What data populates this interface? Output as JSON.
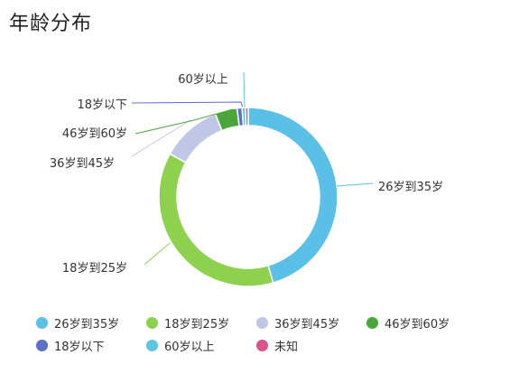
{
  "page": {
    "title": "年龄分布"
  },
  "chart_data": {
    "type": "pie",
    "variant": "donut",
    "title": "年龄分布",
    "legend_position": "bottom",
    "slices": [
      {
        "label": "26岁到35岁",
        "value": 45.5,
        "color": "#5bc0e8"
      },
      {
        "label": "18岁到25岁",
        "value": 37.5,
        "color": "#8ed14f"
      },
      {
        "label": "36岁到45岁",
        "value": 11.0,
        "color": "#bfc6e6"
      },
      {
        "label": "46岁到60岁",
        "value": 4.0,
        "color": "#4aa63a"
      },
      {
        "label": "18岁以下",
        "value": 0.9,
        "color": "#5b6fc7"
      },
      {
        "label": "60岁以上",
        "value": 0.6,
        "color": "#5ec6dc"
      },
      {
        "label": "未知",
        "value": 0.5,
        "color": "#d8548a"
      }
    ]
  }
}
